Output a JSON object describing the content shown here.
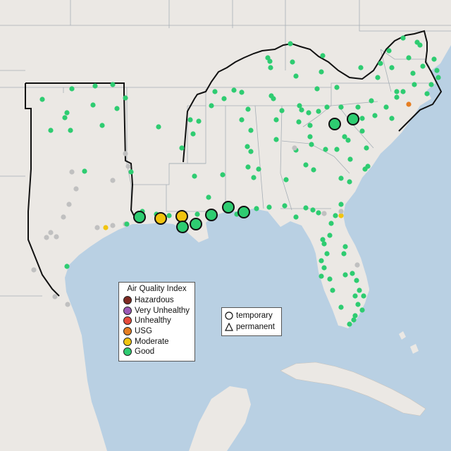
{
  "legend": {
    "title": "Air Quality Index",
    "items": [
      {
        "label": "Hazardous",
        "color": "#7e2a22"
      },
      {
        "label": "Very Unhealthy",
        "color": "#9b59b6"
      },
      {
        "label": "Unhealthy",
        "color": "#e74c3c"
      },
      {
        "label": "USG",
        "color": "#e67e22"
      },
      {
        "label": "Moderate",
        "color": "#f1c40f"
      },
      {
        "label": "Good",
        "color": "#2ecc71"
      }
    ]
  },
  "shape_legend": {
    "items": [
      {
        "label": "temporary",
        "icon": "circle-icon"
      },
      {
        "label": "permanent",
        "icon": "triangle-icon"
      }
    ]
  },
  "colors": {
    "ocean": "#b9d0e3",
    "land": "#ebe8e4",
    "border_dark": "#111111",
    "state_lines": "#9aa4ad",
    "no_data": "#c0c0c0"
  }
}
